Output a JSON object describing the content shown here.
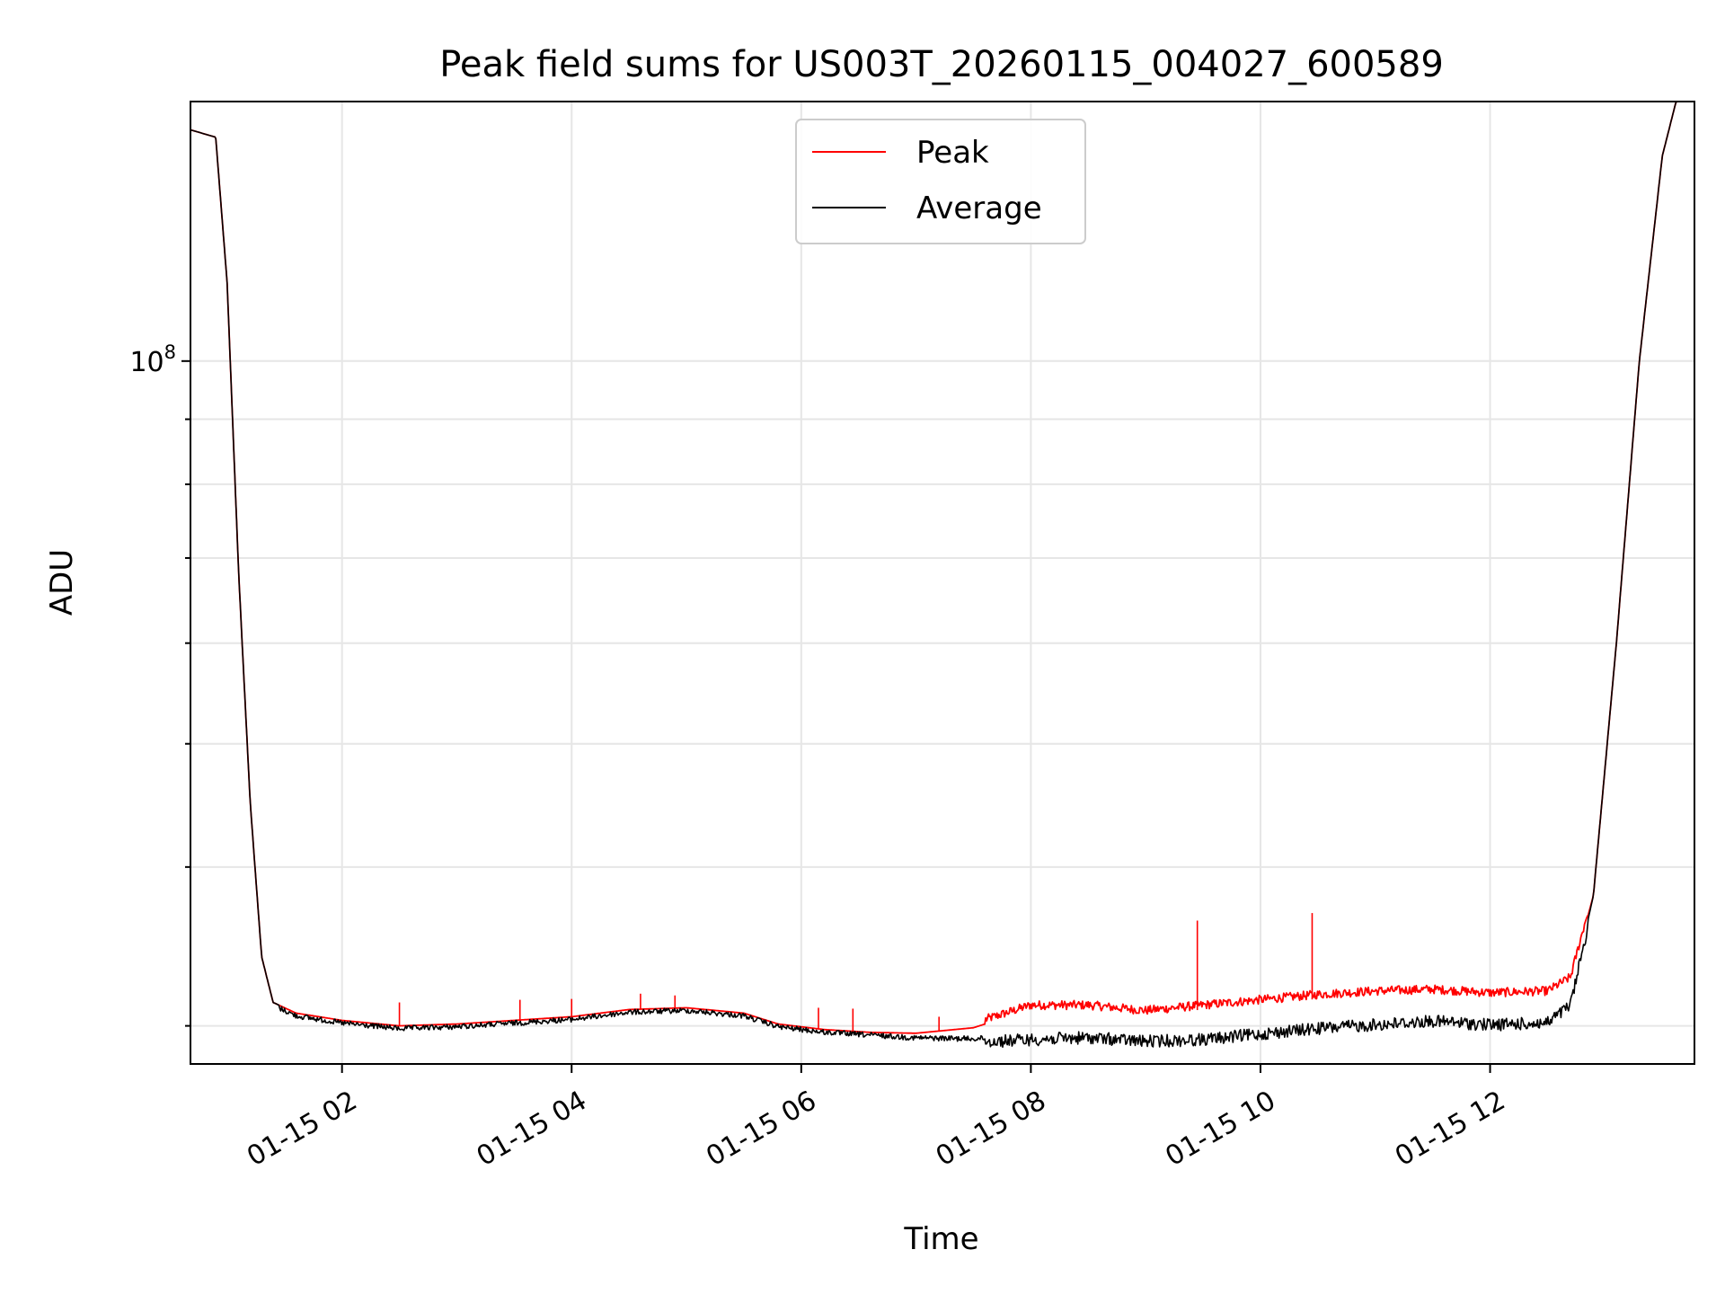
{
  "chart_data": {
    "type": "line",
    "title": "Peak field sums for US003T_20260115_004027_600589",
    "xlabel": "Time",
    "ylabel": "ADU",
    "yscale": "log",
    "ylim": [
      28000000,
      160000000
    ],
    "xlim_hours": [
      0.68,
      13.78
    ],
    "grid": true,
    "grid_color": "#e6e6e6",
    "legend_position": "top-center",
    "x_ticks": [
      {
        "hour": 2,
        "label": "01-15 02"
      },
      {
        "hour": 4,
        "label": "01-15 04"
      },
      {
        "hour": 6,
        "label": "01-15 06"
      },
      {
        "hour": 8,
        "label": "01-15 08"
      },
      {
        "hour": 10,
        "label": "01-15 10"
      },
      {
        "hour": 12,
        "label": "01-15 12"
      }
    ],
    "y_major_ticks": [
      {
        "value": 100000000,
        "base": "10",
        "exponent": "8"
      }
    ],
    "y_minor_ticks": [
      30000000,
      40000000,
      50000000,
      60000000,
      70000000,
      80000000,
      90000000,
      200000000
    ],
    "series": [
      {
        "name": "Peak",
        "color": "#ff0000",
        "hours": [
          0.68,
          0.9,
          1.0,
          1.1,
          1.2,
          1.3,
          1.4,
          1.6,
          2.0,
          2.5,
          3.0,
          3.5,
          4.0,
          4.5,
          5.0,
          5.5,
          5.8,
          6.2,
          6.6,
          7.0,
          7.5,
          8.0,
          8.5,
          9.0,
          9.5,
          10.0,
          10.5,
          11.0,
          11.5,
          12.0,
          12.5,
          12.7,
          12.9,
          13.1,
          13.3,
          13.5,
          13.62,
          13.78
        ],
        "values": [
          152000000,
          150000000,
          115000000,
          68000000,
          45000000,
          34000000,
          31300000,
          30700000,
          30300000,
          30000000,
          30100000,
          30300000,
          30500000,
          30900000,
          31000000,
          30700000,
          30100000,
          29800000,
          29650000,
          29600000,
          29900000,
          30900000,
          30900000,
          30600000,
          30900000,
          31200000,
          31500000,
          31700000,
          31800000,
          31600000,
          31700000,
          32500000,
          38000000,
          60000000,
          100000000,
          145000000,
          160000000,
          160000000
        ]
      },
      {
        "name": "Average",
        "color": "#000000",
        "hours": [
          0.68,
          0.9,
          1.0,
          1.1,
          1.2,
          1.3,
          1.4,
          1.6,
          2.0,
          2.5,
          3.0,
          3.5,
          4.0,
          4.5,
          5.0,
          5.5,
          5.8,
          6.2,
          6.6,
          7.0,
          7.5,
          8.0,
          8.5,
          9.0,
          9.5,
          10.0,
          10.5,
          11.0,
          11.5,
          12.0,
          12.5,
          12.7,
          12.9,
          13.1,
          13.3,
          13.5,
          13.62,
          13.78
        ],
        "values": [
          152000000,
          150000000,
          115000000,
          68000000,
          45000000,
          34000000,
          31300000,
          30700000,
          30300000,
          30000000,
          30100000,
          30300000,
          30500000,
          30900000,
          31000000,
          30700000,
          30100000,
          29800000,
          29650000,
          29500000,
          29450000,
          29600000,
          29700000,
          29500000,
          29600000,
          29900000,
          30200000,
          30400000,
          30600000,
          30400000,
          30500000,
          31500000,
          38000000,
          60000000,
          100000000,
          145000000,
          160000000,
          160000000
        ]
      }
    ],
    "peak_spikes": [
      {
        "hour": 9.45,
        "value": 36300000
      },
      {
        "hour": 10.45,
        "value": 36800000
      },
      {
        "hour": 4.6,
        "value": 31800000
      },
      {
        "hour": 4.9,
        "value": 31700000
      },
      {
        "hour": 2.5,
        "value": 31300000
      },
      {
        "hour": 3.55,
        "value": 31450000
      },
      {
        "hour": 4.0,
        "value": 31500000
      },
      {
        "hour": 6.15,
        "value": 31000000
      },
      {
        "hour": 6.45,
        "value": 30950000
      },
      {
        "hour": 7.2,
        "value": 30500000
      }
    ]
  }
}
